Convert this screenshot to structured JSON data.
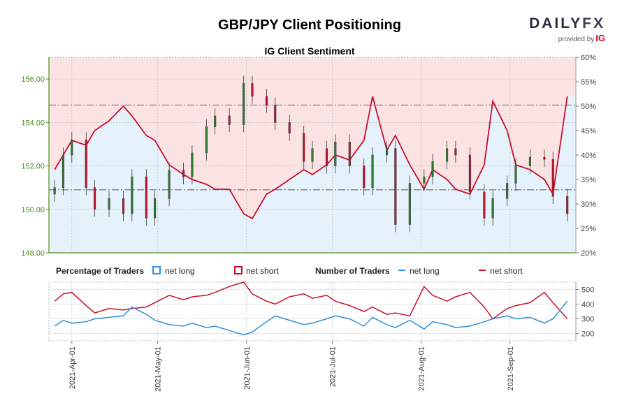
{
  "brand": {
    "name_left": "DAILY",
    "name_right": "FX",
    "provided_by": "provided by",
    "ig": "IG"
  },
  "chart_data": {
    "type": "line",
    "title": "GBP/JPY Client Positioning",
    "subtitle": "IG Client Sentiment",
    "months": [
      "2021-Apr-01",
      "2021-May-01",
      "2021-Jun-01",
      "2021-Jul-01",
      "2021-Aug-01",
      "2021-Sep-01"
    ],
    "price_axis": {
      "ylim": [
        148.0,
        157.0
      ],
      "ticks": [
        "148.00",
        "150.00",
        "152.00",
        "154.00",
        "156.00"
      ]
    },
    "sentiment_axis": {
      "ylim": [
        20,
        60
      ],
      "ticks": [
        "20%",
        "25%",
        "30%",
        "35%",
        "40%",
        "45%",
        "50%",
        "55%",
        "60%"
      ]
    },
    "traders_axis": {
      "ylim": [
        150,
        550
      ],
      "ticks": [
        "200",
        "300",
        "400",
        "500"
      ]
    },
    "reference_lines": {
      "price_upper": 154.8,
      "price_lower": 150.9
    },
    "legend": {
      "percentage_title": "Percentage of Traders",
      "number_title": "Number of Traders",
      "net_long": "net long",
      "net_short": "net short"
    },
    "colors": {
      "net_long": "#2f8fdd",
      "net_short": "#c8102e",
      "candle_up": "#2e7d32",
      "candle_down": "#c8102e",
      "bg_long": "#e6f2fb",
      "bg_short": "#fbe3e3",
      "axis_green": "#4c8c1e"
    },
    "dates": [
      "2021-Mar-26",
      "2021-Mar-29",
      "2021-Apr-01",
      "2021-Apr-06",
      "2021-Apr-09",
      "2021-Apr-14",
      "2021-Apr-19",
      "2021-Apr-22",
      "2021-Apr-27",
      "2021-Apr-30",
      "2021-May-05",
      "2021-May-10",
      "2021-May-13",
      "2021-May-18",
      "2021-May-21",
      "2021-May-26",
      "2021-May-31",
      "2021-Jun-03",
      "2021-Jun-08",
      "2021-Jun-11",
      "2021-Jun-16",
      "2021-Jun-21",
      "2021-Jun-24",
      "2021-Jun-29",
      "2021-Jul-02",
      "2021-Jul-07",
      "2021-Jul-12",
      "2021-Jul-15",
      "2021-Jul-20",
      "2021-Jul-23",
      "2021-Jul-28",
      "2021-Aug-02",
      "2021-Aug-05",
      "2021-Aug-10",
      "2021-Aug-13",
      "2021-Aug-18",
      "2021-Aug-23",
      "2021-Aug-26",
      "2021-Aug-31",
      "2021-Sep-03",
      "2021-Sep-08",
      "2021-Sep-13",
      "2021-Sep-16",
      "2021-Sep-21"
    ],
    "price_close": [
      151.0,
      152.5,
      153.2,
      151.0,
      150.0,
      150.5,
      149.8,
      151.5,
      149.6,
      150.5,
      151.8,
      151.5,
      152.6,
      153.8,
      154.3,
      153.9,
      155.8,
      155.2,
      154.8,
      154.0,
      153.5,
      152.2,
      152.8,
      152.0,
      153.1,
      152.0,
      151.0,
      152.5,
      152.8,
      149.3,
      151.2,
      151.5,
      152.2,
      152.8,
      152.5,
      150.8,
      149.6,
      150.5,
      151.2,
      152.0,
      152.4,
      152.3,
      150.6,
      149.8
    ],
    "sentiment_long_pct": [
      37,
      40,
      43,
      42,
      45,
      47,
      50,
      48,
      44,
      43,
      38,
      36,
      35,
      34,
      33,
      33,
      28,
      27,
      32,
      33,
      35,
      37,
      36,
      38,
      40,
      39,
      43,
      52,
      41,
      44,
      38,
      33,
      37,
      35,
      33,
      32,
      38,
      51,
      45,
      38,
      37,
      35,
      32,
      52
    ],
    "traders_long": [
      250,
      290,
      270,
      280,
      300,
      310,
      320,
      380,
      330,
      290,
      260,
      250,
      270,
      240,
      250,
      220,
      190,
      210,
      280,
      320,
      290,
      260,
      270,
      300,
      320,
      300,
      250,
      310,
      260,
      240,
      290,
      230,
      280,
      260,
      240,
      250,
      280,
      300,
      320,
      300,
      310,
      270,
      300,
      420
    ],
    "traders_short": [
      420,
      470,
      480,
      390,
      340,
      370,
      360,
      370,
      380,
      410,
      460,
      430,
      450,
      460,
      480,
      520,
      550,
      470,
      420,
      400,
      450,
      470,
      440,
      460,
      420,
      390,
      350,
      380,
      330,
      340,
      320,
      520,
      460,
      420,
      450,
      480,
      380,
      300,
      370,
      390,
      410,
      480,
      410,
      300
    ]
  }
}
